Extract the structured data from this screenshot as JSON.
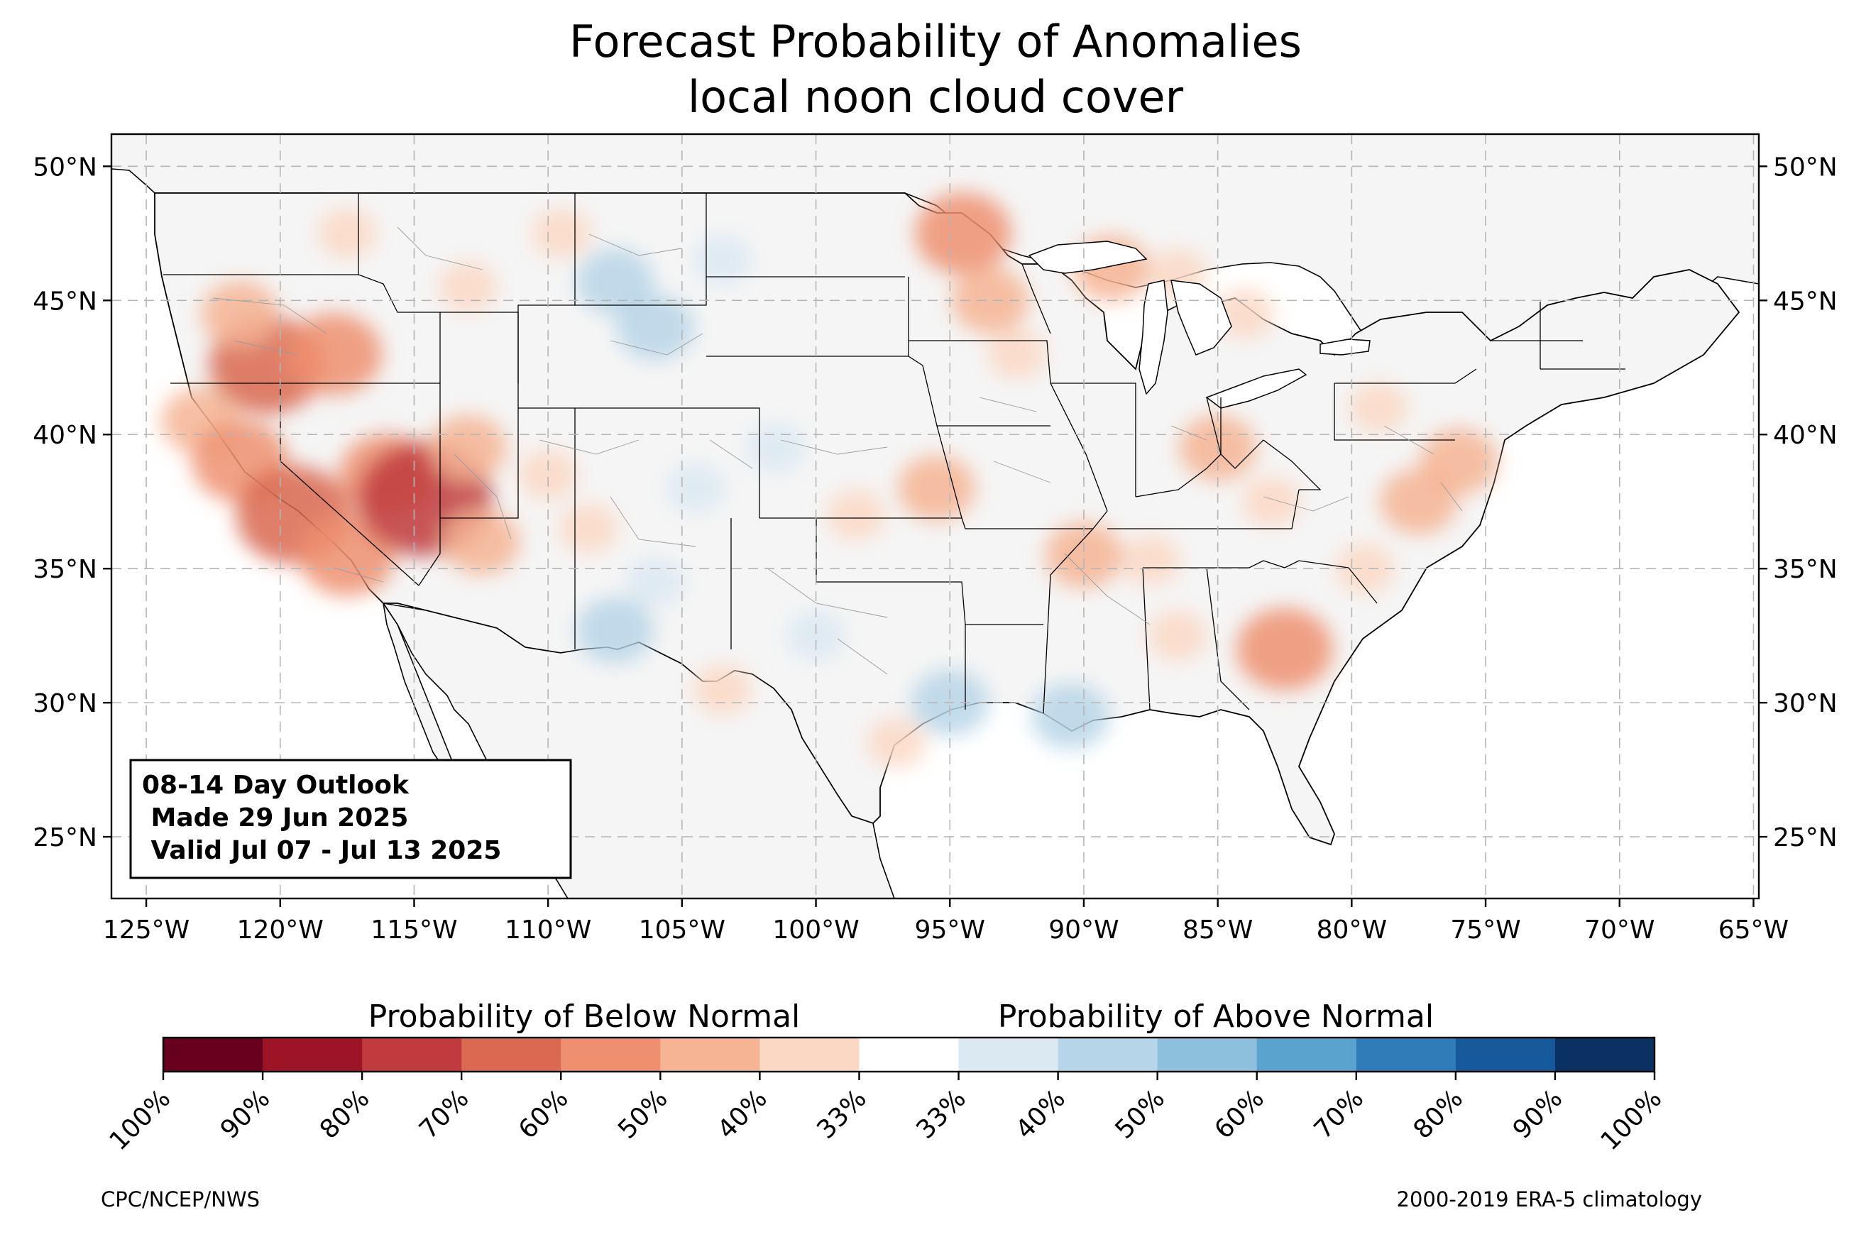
{
  "title": {
    "line1": "Forecast Probability of Anomalies",
    "line2": "local noon cloud cover"
  },
  "map": {
    "lon_range": [
      -126.3,
      -64.8
    ],
    "lat_range": [
      22.7,
      51.2
    ],
    "lon_ticks": [
      -125,
      -120,
      -115,
      -110,
      -105,
      -100,
      -95,
      -90,
      -85,
      -80,
      -75,
      -70,
      -65
    ],
    "lon_tick_labels": [
      "125°W",
      "120°W",
      "115°W",
      "110°W",
      "105°W",
      "100°W",
      "95°W",
      "90°W",
      "85°W",
      "80°W",
      "75°W",
      "70°W",
      "65°W"
    ],
    "lat_ticks": [
      25,
      30,
      35,
      40,
      45,
      50
    ],
    "lat_tick_labels": [
      "25°N",
      "30°N",
      "35°N",
      "40°N",
      "45°N",
      "50°N"
    ],
    "gridlines": true,
    "land_color": "#f5f5f5"
  },
  "info_box": {
    "line1": "08-14 Day Outlook",
    "line2": " Made 29 Jun 2025",
    "line3": " Valid Jul 07 - Jul 13 2025",
    "placement": "bottom-left"
  },
  "colorbar": {
    "below_label": "Probability of Below Normal",
    "above_label": "Probability of Above Normal",
    "tick_labels": [
      "100%",
      "90%",
      "80%",
      "70%",
      "60%",
      "50%",
      "40%",
      "33%",
      "33%",
      "40%",
      "50%",
      "60%",
      "70%",
      "80%",
      "90%",
      "100%"
    ],
    "colors": [
      "#67001f",
      "#9e1427",
      "#c13a3d",
      "#d9694f",
      "#ee9070",
      "#f6b494",
      "#fbd8c4",
      "#ffffff",
      "#dbe9f2",
      "#b7d5e8",
      "#8dc0dd",
      "#5ba3cf",
      "#2f7cb9",
      "#175a9b",
      "#0a3162"
    ]
  },
  "anomalies": [
    {
      "lon": -120.5,
      "lat": 42.6,
      "level": 4
    },
    {
      "lon": -118.0,
      "lat": 43.0,
      "level": 3
    },
    {
      "lon": -121.5,
      "lat": 44.5,
      "level": 2
    },
    {
      "lon": -117.5,
      "lat": 47.5,
      "level": 1
    },
    {
      "lon": -113.0,
      "lat": 45.5,
      "level": 1
    },
    {
      "lon": -109.5,
      "lat": 47.5,
      "level": 1
    },
    {
      "lon": -123.0,
      "lat": 40.5,
      "level": 2
    },
    {
      "lon": -121.5,
      "lat": 39.0,
      "level": 3
    },
    {
      "lon": -119.5,
      "lat": 37.0,
      "level": 4
    },
    {
      "lon": -117.5,
      "lat": 35.5,
      "level": 3
    },
    {
      "lon": -116.0,
      "lat": 38.5,
      "level": 3
    },
    {
      "lon": -114.6,
      "lat": 37.6,
      "level": 5
    },
    {
      "lon": -113.0,
      "lat": 39.5,
      "level": 2
    },
    {
      "lon": -112.5,
      "lat": 36.0,
      "level": 2
    },
    {
      "lon": -110.0,
      "lat": 38.5,
      "level": 1
    },
    {
      "lon": -108.5,
      "lat": 36.5,
      "level": 1
    },
    {
      "lon": -94.5,
      "lat": 47.5,
      "level": 3
    },
    {
      "lon": -93.5,
      "lat": 45.0,
      "level": 2
    },
    {
      "lon": -92.5,
      "lat": 43.0,
      "level": 1
    },
    {
      "lon": -89.0,
      "lat": 46.2,
      "level": 2
    },
    {
      "lon": -86.5,
      "lat": 46.0,
      "level": 1
    },
    {
      "lon": -84.0,
      "lat": 44.5,
      "level": 1
    },
    {
      "lon": -95.5,
      "lat": 38.0,
      "level": 2
    },
    {
      "lon": -98.5,
      "lat": 37.0,
      "level": 1
    },
    {
      "lon": -90.0,
      "lat": 35.5,
      "level": 2
    },
    {
      "lon": -87.5,
      "lat": 35.3,
      "level": 1
    },
    {
      "lon": -85.0,
      "lat": 39.5,
      "level": 2
    },
    {
      "lon": -83.0,
      "lat": 37.5,
      "level": 1
    },
    {
      "lon": -77.5,
      "lat": 37.5,
      "level": 2
    },
    {
      "lon": -76.0,
      "lat": 39.0,
      "level": 2
    },
    {
      "lon": -79.5,
      "lat": 35.0,
      "level": 1
    },
    {
      "lon": -82.5,
      "lat": 32.0,
      "level": 3
    },
    {
      "lon": -86.5,
      "lat": 32.5,
      "level": 1
    },
    {
      "lon": -79.0,
      "lat": 41.0,
      "level": 1
    },
    {
      "lon": -103.5,
      "lat": 30.5,
      "level": 1
    },
    {
      "lon": -97.0,
      "lat": 28.5,
      "level": 1
    },
    {
      "lon": -106.0,
      "lat": 44.0,
      "level": -2
    },
    {
      "lon": -107.5,
      "lat": 45.7,
      "level": -2
    },
    {
      "lon": -103.5,
      "lat": 46.5,
      "level": -1
    },
    {
      "lon": -104.5,
      "lat": 38.0,
      "level": -1
    },
    {
      "lon": -106.0,
      "lat": 34.5,
      "level": -1
    },
    {
      "lon": -107.5,
      "lat": 32.7,
      "level": -2
    },
    {
      "lon": -100.0,
      "lat": 32.5,
      "level": -1
    },
    {
      "lon": -95.0,
      "lat": 30.0,
      "level": -2
    },
    {
      "lon": -90.5,
      "lat": 29.5,
      "level": -2
    },
    {
      "lon": -101.5,
      "lat": 39.5,
      "level": -1
    }
  ],
  "footer": {
    "left": "CPC/NCEP/NWS",
    "right": "2000-2019 ERA-5 climatology"
  }
}
